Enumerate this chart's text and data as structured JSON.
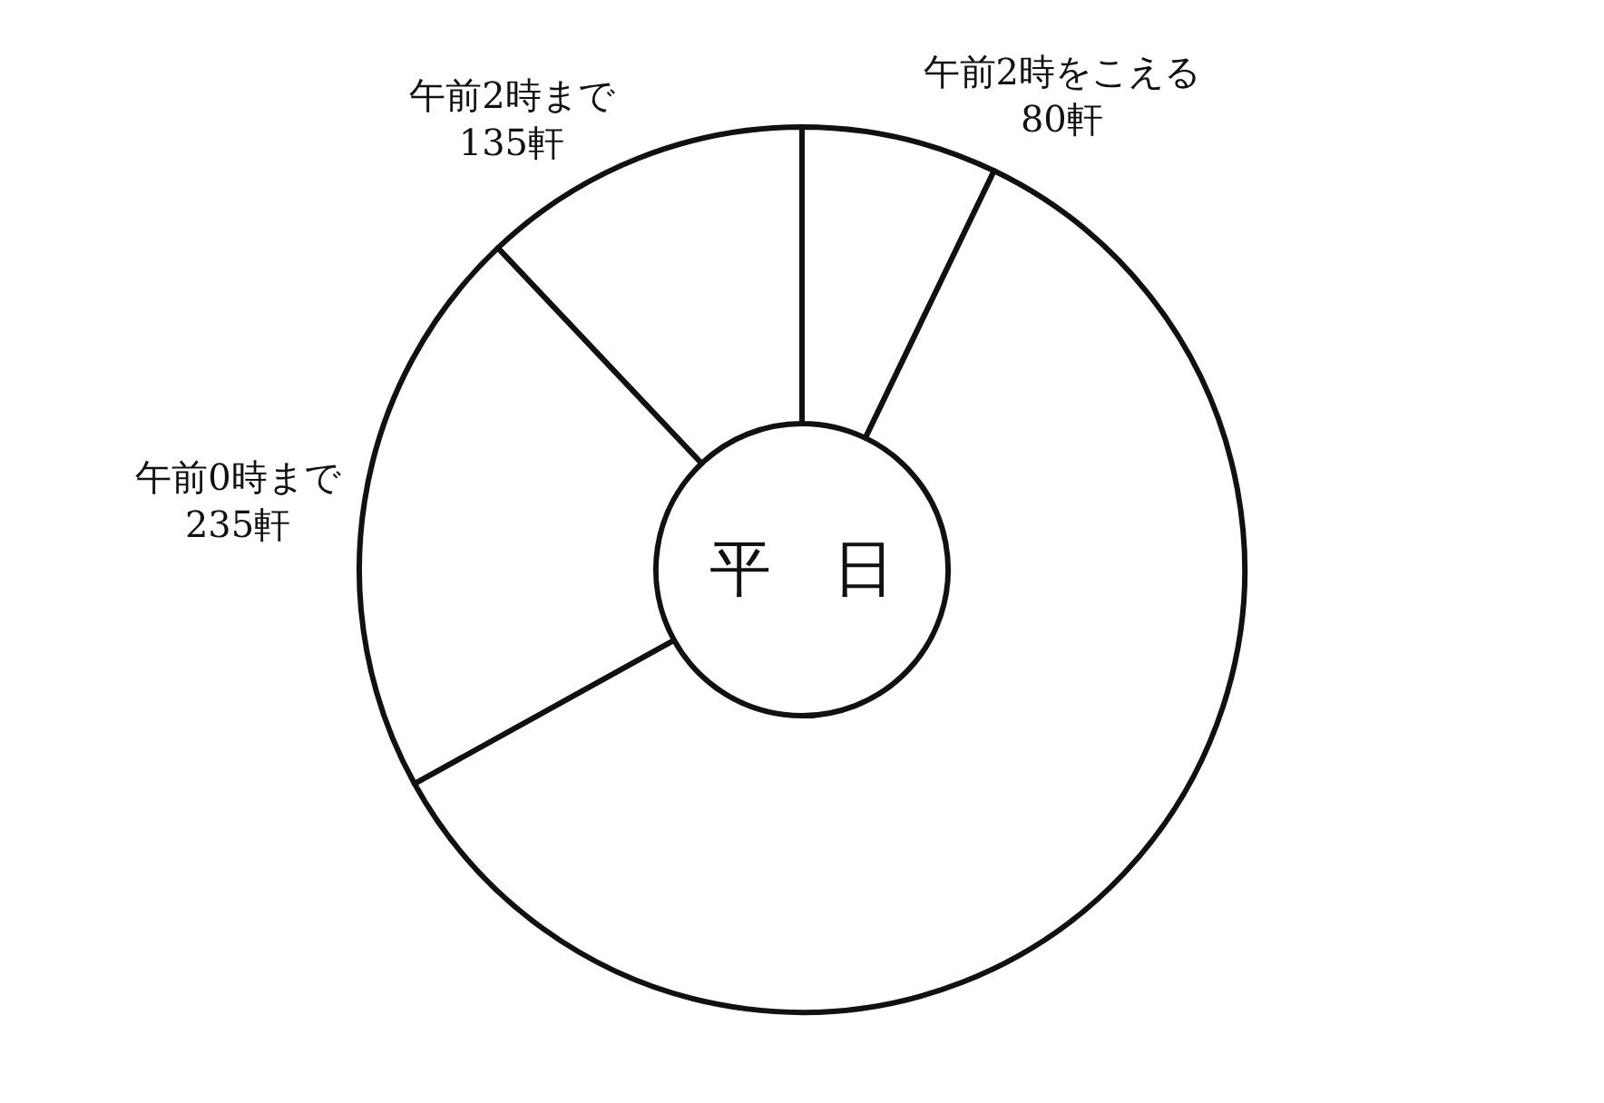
{
  "chart_data": {
    "type": "donut",
    "categories": [
      "午前2時をこえる",
      "午前2時まで",
      "午前0時まで",
      null
    ],
    "values": [
      80,
      135,
      235,
      670
    ],
    "value_labels": [
      "80軒",
      "135軒",
      "235軒",
      null
    ],
    "colors": [
      "#ffffff",
      "#ffffff",
      "#ffffff",
      "#ffffff"
    ],
    "annotations": [
      "平　日"
    ],
    "legend": false
  }
}
